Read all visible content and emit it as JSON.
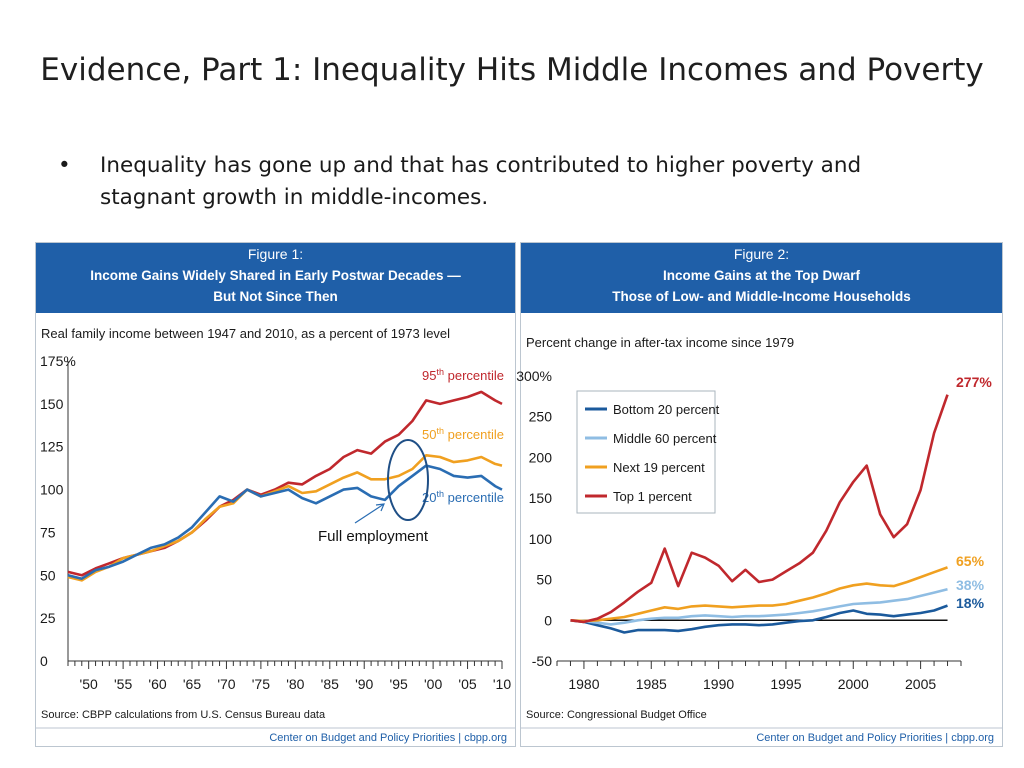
{
  "slide": {
    "title": "Evidence, Part 1: Inequality Hits Middle Incomes and Poverty",
    "bullet_symbol": "•",
    "bullet": "Inequality has gone up and that has contributed to higher poverty and stagnant growth in middle-incomes.",
    "annotation": "Full employment"
  },
  "colors": {
    "header_blue": "#1f5fa8",
    "line_red": "#c0282d",
    "line_orange": "#f0a020",
    "line_blue": "#2a6db3",
    "line_dark_blue": "#1b5a9c",
    "line_light_blue": "#8fbde3"
  },
  "chart_data": [
    {
      "type": "line",
      "figure_label": "Figure 1:",
      "title_line1": "Income Gains Widely Shared in Early Postwar  Decades —",
      "title_line2": "But Not Since Then",
      "subtitle": "Real family income between 1947 and 2010, as a percent of 1973 level",
      "source": "Source: CBPP calculations from U.S. Census Bureau data",
      "credit": "Center on Budget and Policy Priorities | cbpp.org",
      "xlim": [
        1947,
        2010
      ],
      "ylim": [
        0,
        175
      ],
      "x_ticks": [
        {
          "v": 1950,
          "label": "'50"
        },
        {
          "v": 1955,
          "label": "'55"
        },
        {
          "v": 1960,
          "label": "'60"
        },
        {
          "v": 1965,
          "label": "'65"
        },
        {
          "v": 1970,
          "label": "'70"
        },
        {
          "v": 1975,
          "label": "'75"
        },
        {
          "v": 1980,
          "label": "'80"
        },
        {
          "v": 1985,
          "label": "'85"
        },
        {
          "v": 1990,
          "label": "'90"
        },
        {
          "v": 1995,
          "label": "'95"
        },
        {
          "v": 2000,
          "label": "'00"
        },
        {
          "v": 2005,
          "label": "'05"
        },
        {
          "v": 2010,
          "label": "'10"
        }
      ],
      "y_ticks": [
        {
          "v": 0,
          "label": "0"
        },
        {
          "v": 25,
          "label": "25"
        },
        {
          "v": 50,
          "label": "50"
        },
        {
          "v": 75,
          "label": "75"
        },
        {
          "v": 100,
          "label": "100"
        },
        {
          "v": 125,
          "label": "125"
        },
        {
          "v": 150,
          "label": "150"
        },
        {
          "v": 175,
          "label": "175%"
        }
      ],
      "x": [
        1947,
        1949,
        1951,
        1953,
        1955,
        1957,
        1959,
        1961,
        1963,
        1965,
        1967,
        1969,
        1971,
        1973,
        1975,
        1977,
        1979,
        1981,
        1983,
        1985,
        1987,
        1989,
        1991,
        1993,
        1995,
        1997,
        1999,
        2001,
        2003,
        2005,
        2007,
        2009,
        2010
      ],
      "series": [
        {
          "name_prefix": "95",
          "name_sup": "th",
          "name_suffix": " percentile",
          "color": "#c0282d",
          "values": [
            52,
            50,
            54,
            57,
            60,
            62,
            64,
            66,
            70,
            75,
            82,
            90,
            94,
            100,
            97,
            100,
            104,
            103,
            108,
            112,
            119,
            123,
            121,
            128,
            132,
            140,
            152,
            150,
            152,
            154,
            157,
            152,
            150
          ]
        },
        {
          "name_prefix": "50",
          "name_sup": "th",
          "name_suffix": " percentile",
          "color": "#f0a020",
          "values": [
            49,
            47,
            52,
            55,
            60,
            62,
            64,
            67,
            70,
            75,
            83,
            90,
            92,
            100,
            96,
            99,
            102,
            98,
            99,
            103,
            107,
            110,
            106,
            106,
            108,
            112,
            120,
            119,
            116,
            117,
            119,
            115,
            114
          ]
        },
        {
          "name_prefix": "20",
          "name_sup": "th",
          "name_suffix": " percentile",
          "color": "#2a6db3",
          "values": [
            50,
            48,
            53,
            55,
            58,
            62,
            66,
            68,
            72,
            78,
            87,
            96,
            93,
            100,
            96,
            98,
            100,
            95,
            92,
            96,
            100,
            101,
            96,
            94,
            102,
            108,
            114,
            112,
            108,
            107,
            108,
            102,
            100
          ]
        }
      ]
    },
    {
      "type": "line",
      "figure_label": "Figure 2:",
      "title_line1": "Income Gains at the Top Dwarf",
      "title_line2": "Those of Low- and Middle-Income Households",
      "subtitle": "Percent change in after-tax income since 1979",
      "source": "Source: Congressional Budget Office",
      "credit": "Center on Budget and Policy Priorities | cbpp.org",
      "xlim": [
        1978,
        2008
      ],
      "ylim": [
        -50,
        300
      ],
      "x_ticks": [
        {
          "v": 1980,
          "label": "1980"
        },
        {
          "v": 1985,
          "label": "1985"
        },
        {
          "v": 1990,
          "label": "1990"
        },
        {
          "v": 1995,
          "label": "1995"
        },
        {
          "v": 2000,
          "label": "2000"
        },
        {
          "v": 2005,
          "label": "2005"
        }
      ],
      "y_ticks": [
        {
          "v": -50,
          "label": "-50"
        },
        {
          "v": 0,
          "label": "0"
        },
        {
          "v": 50,
          "label": "50"
        },
        {
          "v": 100,
          "label": "100"
        },
        {
          "v": 150,
          "label": "150"
        },
        {
          "v": 200,
          "label": "200"
        },
        {
          "v": 250,
          "label": "250"
        },
        {
          "v": 300,
          "label": "300%"
        }
      ],
      "legend": {
        "placement": "top-left"
      },
      "x": [
        1979,
        1980,
        1981,
        1982,
        1983,
        1984,
        1985,
        1986,
        1987,
        1988,
        1989,
        1990,
        1991,
        1992,
        1993,
        1994,
        1995,
        1996,
        1997,
        1998,
        1999,
        2000,
        2001,
        2002,
        2003,
        2004,
        2005,
        2006,
        2007
      ],
      "series": [
        {
          "name": "Bottom 20 percent",
          "color": "#1b5a9c",
          "end_label": "18%",
          "values": [
            0,
            -2,
            -6,
            -10,
            -15,
            -12,
            -12,
            -12,
            -13,
            -11,
            -8,
            -6,
            -5,
            -5,
            -6,
            -5,
            -3,
            -1,
            0,
            4,
            9,
            12,
            8,
            7,
            5,
            7,
            9,
            12,
            18
          ]
        },
        {
          "name": "Middle 60 percent",
          "color": "#8fbde3",
          "end_label": "38%",
          "values": [
            0,
            -1,
            -3,
            -5,
            -3,
            0,
            2,
            3,
            3,
            5,
            6,
            5,
            4,
            5,
            5,
            6,
            7,
            9,
            11,
            14,
            17,
            20,
            21,
            22,
            24,
            26,
            30,
            34,
            38
          ]
        },
        {
          "name": "Next 19 percent",
          "color": "#f0a020",
          "end_label": "65%",
          "values": [
            0,
            -1,
            0,
            2,
            4,
            8,
            12,
            16,
            14,
            17,
            18,
            17,
            16,
            17,
            18,
            18,
            20,
            24,
            28,
            33,
            39,
            43,
            45,
            43,
            42,
            47,
            53,
            59,
            65
          ]
        },
        {
          "name": "Top 1 percent",
          "color": "#c0282d",
          "end_label": "277%",
          "values": [
            0,
            -2,
            2,
            10,
            22,
            35,
            46,
            88,
            42,
            83,
            77,
            67,
            48,
            62,
            47,
            50,
            60,
            70,
            83,
            110,
            145,
            170,
            190,
            130,
            102,
            118,
            160,
            230,
            277
          ]
        }
      ]
    }
  ]
}
